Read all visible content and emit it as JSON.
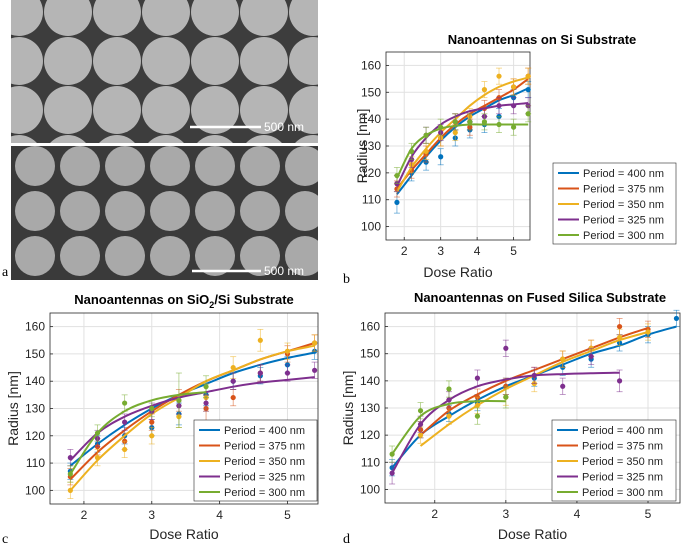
{
  "figure": {
    "panel_letters": {
      "a": "a",
      "b": "b",
      "c": "c",
      "d": "d"
    },
    "colors": {
      "p400": "#0072BD",
      "p375": "#D95319",
      "p350": "#EDB120",
      "p325": "#7E2F8E",
      "p300": "#77AC30"
    }
  },
  "sem": {
    "top": {
      "scale_text": "500 nm",
      "scale_icon": "scale-bar"
    },
    "bottom": {
      "scale_text": "500 nm",
      "scale_icon": "scale-bar"
    }
  },
  "chart_data": [
    {
      "id": "b",
      "type": "scatter",
      "title": "Nanoantennas on Si Substrate",
      "xlabel": "Dose Ratio",
      "ylabel": "Radius [nm]",
      "xlim": [
        1.5,
        5.45
      ],
      "ylim": [
        95,
        165
      ],
      "xticks": [
        2,
        3,
        4,
        5
      ],
      "yticks": [
        100,
        110,
        120,
        130,
        140,
        150,
        160
      ],
      "grid": true,
      "legend_position": "bottom-right",
      "series": [
        {
          "name": "Period = 400 nm",
          "color": "#0072BD",
          "x": [
            1.8,
            2.2,
            2.6,
            3.0,
            3.4,
            3.8,
            4.2,
            4.6,
            5.0,
            5.4
          ],
          "y": [
            109,
            120,
            124,
            126,
            133,
            136,
            138,
            141,
            148,
            151
          ],
          "err": [
            4,
            3,
            3,
            3,
            3,
            3,
            3,
            3,
            3,
            3
          ],
          "fit": [
            112,
            119,
            126,
            132,
            137,
            141,
            144,
            147,
            149,
            151.5
          ]
        },
        {
          "name": "Period = 375 nm",
          "color": "#D95319",
          "x": [
            1.8,
            2.2,
            2.6,
            3.0,
            3.4,
            3.8,
            4.2,
            4.6,
            5.0,
            5.4
          ],
          "y": [
            114,
            121,
            127,
            133,
            139,
            137,
            144,
            148,
            152,
            156
          ],
          "err": [
            3,
            3,
            3,
            3,
            3,
            3,
            3,
            3,
            3,
            3
          ],
          "fit": [
            114,
            121,
            127,
            133,
            138,
            142,
            145,
            148,
            151,
            155
          ]
        },
        {
          "name": "Period = 350 nm",
          "color": "#EDB120",
          "x": [
            1.8,
            2.2,
            2.6,
            3.0,
            3.4,
            3.8,
            4.2,
            4.6,
            5.0,
            5.4
          ],
          "y": [
            116,
            123,
            128,
            133,
            135,
            141,
            151,
            156,
            152,
            156
          ],
          "err": [
            3,
            3,
            3,
            3,
            3,
            3,
            3,
            3,
            3,
            3
          ],
          "fit": [
            113,
            122,
            129,
            135,
            140,
            145,
            149,
            152,
            154,
            155.5
          ]
        },
        {
          "name": "Period = 325 nm",
          "color": "#7E2F8E",
          "x": [
            1.8,
            2.2,
            2.6,
            3.0,
            3.4,
            3.8,
            4.2,
            4.6,
            5.0,
            5.4
          ],
          "y": [
            116,
            125,
            134,
            135,
            139,
            139,
            141,
            145,
            145,
            145
          ],
          "err": [
            3,
            3,
            3,
            3,
            3,
            3,
            3,
            3,
            3,
            3
          ],
          "fit": [
            115,
            126,
            133,
            138,
            141,
            143,
            144,
            145,
            145.5,
            146
          ]
        },
        {
          "name": "Period = 300 nm",
          "color": "#77AC30",
          "x": [
            1.8,
            2.2,
            2.6,
            3.0,
            3.4,
            3.8,
            4.2,
            4.6,
            5.0,
            5.4
          ],
          "y": [
            119,
            128,
            134,
            137,
            139,
            139,
            139,
            138,
            137,
            142
          ],
          "err": [
            3,
            3,
            3,
            3,
            3,
            3,
            3,
            3,
            3,
            3
          ],
          "fit": [
            118,
            129,
            134,
            136.5,
            137.5,
            138,
            138,
            138,
            138,
            138
          ]
        }
      ]
    },
    {
      "id": "c",
      "type": "scatter",
      "title": "Nanoantennas on SiO",
      "title_sub": "2",
      "title_tail": "/Si Substrate",
      "xlabel": "Dose Ratio",
      "ylabel": "Radius [nm]",
      "xlim": [
        1.5,
        5.45
      ],
      "ylim": [
        95,
        165
      ],
      "xticks": [
        2,
        3,
        4,
        5
      ],
      "yticks": [
        100,
        110,
        120,
        130,
        140,
        150,
        160
      ],
      "grid": true,
      "legend_position": "bottom-right",
      "series": [
        {
          "name": "Period = 400 nm",
          "color": "#0072BD",
          "x": [
            1.8,
            2.2,
            2.6,
            3.0,
            3.4,
            3.8,
            4.2,
            4.6,
            5.0,
            5.4
          ],
          "y": [
            107,
            117,
            120,
            123,
            128,
            135,
            140,
            142,
            146,
            151
          ],
          "err": [
            3,
            3,
            3,
            3,
            4,
            4,
            3,
            3,
            3,
            3
          ],
          "fit": [
            109,
            117,
            124,
            130,
            135,
            139,
            143,
            146,
            148.5,
            150.5
          ]
        },
        {
          "name": "Period = 375 nm",
          "color": "#D95319",
          "x": [
            1.8,
            2.2,
            2.6,
            3.0,
            3.4,
            3.8,
            4.2,
            4.6,
            5.0,
            5.4
          ],
          "y": [
            105,
            116,
            118,
            125,
            133,
            130,
            134,
            143,
            150,
            154
          ],
          "err": [
            3,
            3,
            3,
            3,
            4,
            5,
            3,
            3,
            3,
            3
          ],
          "fit": [
            104,
            114,
            122,
            129,
            135,
            140,
            144,
            148,
            151,
            154
          ]
        },
        {
          "name": "Period = 350 nm",
          "color": "#EDB120",
          "x": [
            1.8,
            2.2,
            2.6,
            3.0,
            3.4,
            3.8,
            4.2,
            4.6,
            5.0,
            5.4
          ],
          "y": [
            100,
            112,
            115,
            120,
            127,
            134,
            145,
            155,
            151,
            154
          ],
          "err": [
            3,
            3,
            3,
            3,
            4,
            5,
            4,
            4,
            3,
            3
          ],
          "fit": [
            100,
            111,
            120,
            128,
            134,
            140,
            144,
            148,
            151,
            153
          ]
        },
        {
          "name": "Period = 325 nm",
          "color": "#7E2F8E",
          "x": [
            1.8,
            2.2,
            2.6,
            3.0,
            3.4,
            3.8,
            4.2,
            4.6,
            5.0,
            5.4
          ],
          "y": [
            112,
            119,
            125,
            129,
            131,
            132,
            140,
            143,
            143,
            144
          ],
          "err": [
            3,
            3,
            3,
            3,
            3,
            3,
            3,
            3,
            3,
            3
          ],
          "fit": [
            111,
            121,
            127,
            131,
            134,
            136,
            138,
            139.5,
            140.5,
            141.5
          ]
        },
        {
          "name": "Period = 300 nm",
          "color": "#77AC30",
          "x": [
            1.8,
            2.2,
            2.6,
            3.0,
            3.4,
            3.8
          ],
          "y": [
            106,
            121,
            132,
            130,
            133,
            138
          ],
          "err": [
            3,
            3,
            3,
            3,
            10,
            4
          ],
          "fit": [
            106,
            121,
            129,
            133,
            135,
            136
          ]
        }
      ]
    },
    {
      "id": "d",
      "type": "scatter",
      "title": "Nanoantennas on Fused Silica Substrate",
      "xlabel": "Dose Ratio",
      "ylabel": "Radius [nm]",
      "xlim": [
        1.3,
        5.45
      ],
      "ylim": [
        95,
        165
      ],
      "xticks": [
        2,
        3,
        4,
        5
      ],
      "yticks": [
        100,
        110,
        120,
        130,
        140,
        150,
        160
      ],
      "grid": true,
      "legend_position": "bottom-right",
      "series": [
        {
          "name": "Period = 400 nm",
          "color": "#0072BD",
          "x": [
            1.4,
            1.8,
            2.2,
            2.6,
            3.0,
            3.4,
            3.8,
            4.2,
            4.6,
            5.0,
            5.4
          ],
          "y": [
            108,
            122,
            128,
            132,
            138,
            141,
            145,
            148,
            154,
            157,
            163
          ],
          "err": [
            3,
            3,
            3,
            3,
            3,
            3,
            3,
            3,
            3,
            3,
            3
          ],
          "fit": [
            108,
            120,
            127,
            133,
            138,
            142,
            146,
            150,
            153,
            157,
            160
          ]
        },
        {
          "name": "Period = 375 nm",
          "color": "#D95319",
          "x": [
            1.8,
            2.2,
            2.6,
            3.0,
            3.4,
            3.8,
            4.2,
            4.6,
            5.0
          ],
          "y": [
            122,
            130,
            134,
            138,
            142,
            148,
            152,
            160,
            159
          ],
          "err": [
            3,
            3,
            3,
            3,
            3,
            3,
            3,
            3,
            3
          ],
          "fit": [
            120,
            129,
            135,
            140,
            144,
            148,
            152,
            156,
            159.5
          ]
        },
        {
          "name": "Period = 350 nm",
          "color": "#EDB120",
          "x": [
            1.8,
            2.2,
            2.6,
            3.0,
            3.4,
            3.8,
            4.2,
            4.6,
            5.0
          ],
          "y": [
            120,
            127,
            131,
            134,
            139,
            148,
            152,
            156,
            158
          ],
          "err": [
            3,
            3,
            3,
            3,
            3,
            3,
            3,
            3,
            3
          ],
          "fit": [
            116,
            124,
            131,
            137,
            142,
            147,
            151,
            155,
            158
          ]
        },
        {
          "name": "Period = 325 nm",
          "color": "#7E2F8E",
          "x": [
            1.4,
            1.8,
            2.2,
            2.6,
            3.0,
            3.4,
            3.8,
            4.2,
            4.6
          ],
          "y": [
            106,
            124,
            133,
            141,
            152,
            142,
            138,
            149,
            140
          ],
          "err": [
            4,
            3,
            3,
            3,
            3,
            3,
            3,
            3,
            4
          ],
          "fit": [
            106,
            124,
            133,
            138,
            140.5,
            142,
            142.5,
            142.8,
            143
          ]
        },
        {
          "name": "Period = 300 nm",
          "color": "#77AC30",
          "x": [
            1.4,
            1.8,
            2.2,
            2.6,
            3.0
          ],
          "y": [
            113,
            129,
            137,
            127,
            134
          ],
          "err": [
            3,
            3,
            3,
            3,
            4
          ],
          "fit": [
            113,
            127,
            131.5,
            132.5,
            132.5
          ]
        }
      ]
    }
  ]
}
